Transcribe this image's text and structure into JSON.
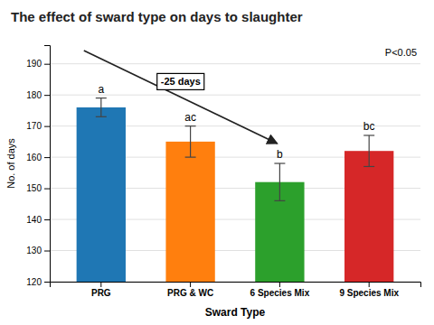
{
  "chart_data": {
    "type": "bar",
    "title": "The effect of sward type on days to slaughter",
    "xlabel": "Sward Type",
    "ylabel": "No. of days",
    "categories": [
      "PRG",
      "PRG & WC",
      "6 Species Mix",
      "9 Species Mix"
    ],
    "values": [
      176,
      165,
      152,
      162
    ],
    "errors": [
      3,
      5,
      6,
      5
    ],
    "letter_labels": [
      "a",
      "ac",
      "b",
      "bc"
    ],
    "annotations": [
      "P<0.05",
      "-25 days"
    ],
    "ylim": [
      120,
      196
    ],
    "yticks": [
      120,
      130,
      140,
      150,
      160,
      170,
      180,
      190
    ],
    "grid": true
  }
}
